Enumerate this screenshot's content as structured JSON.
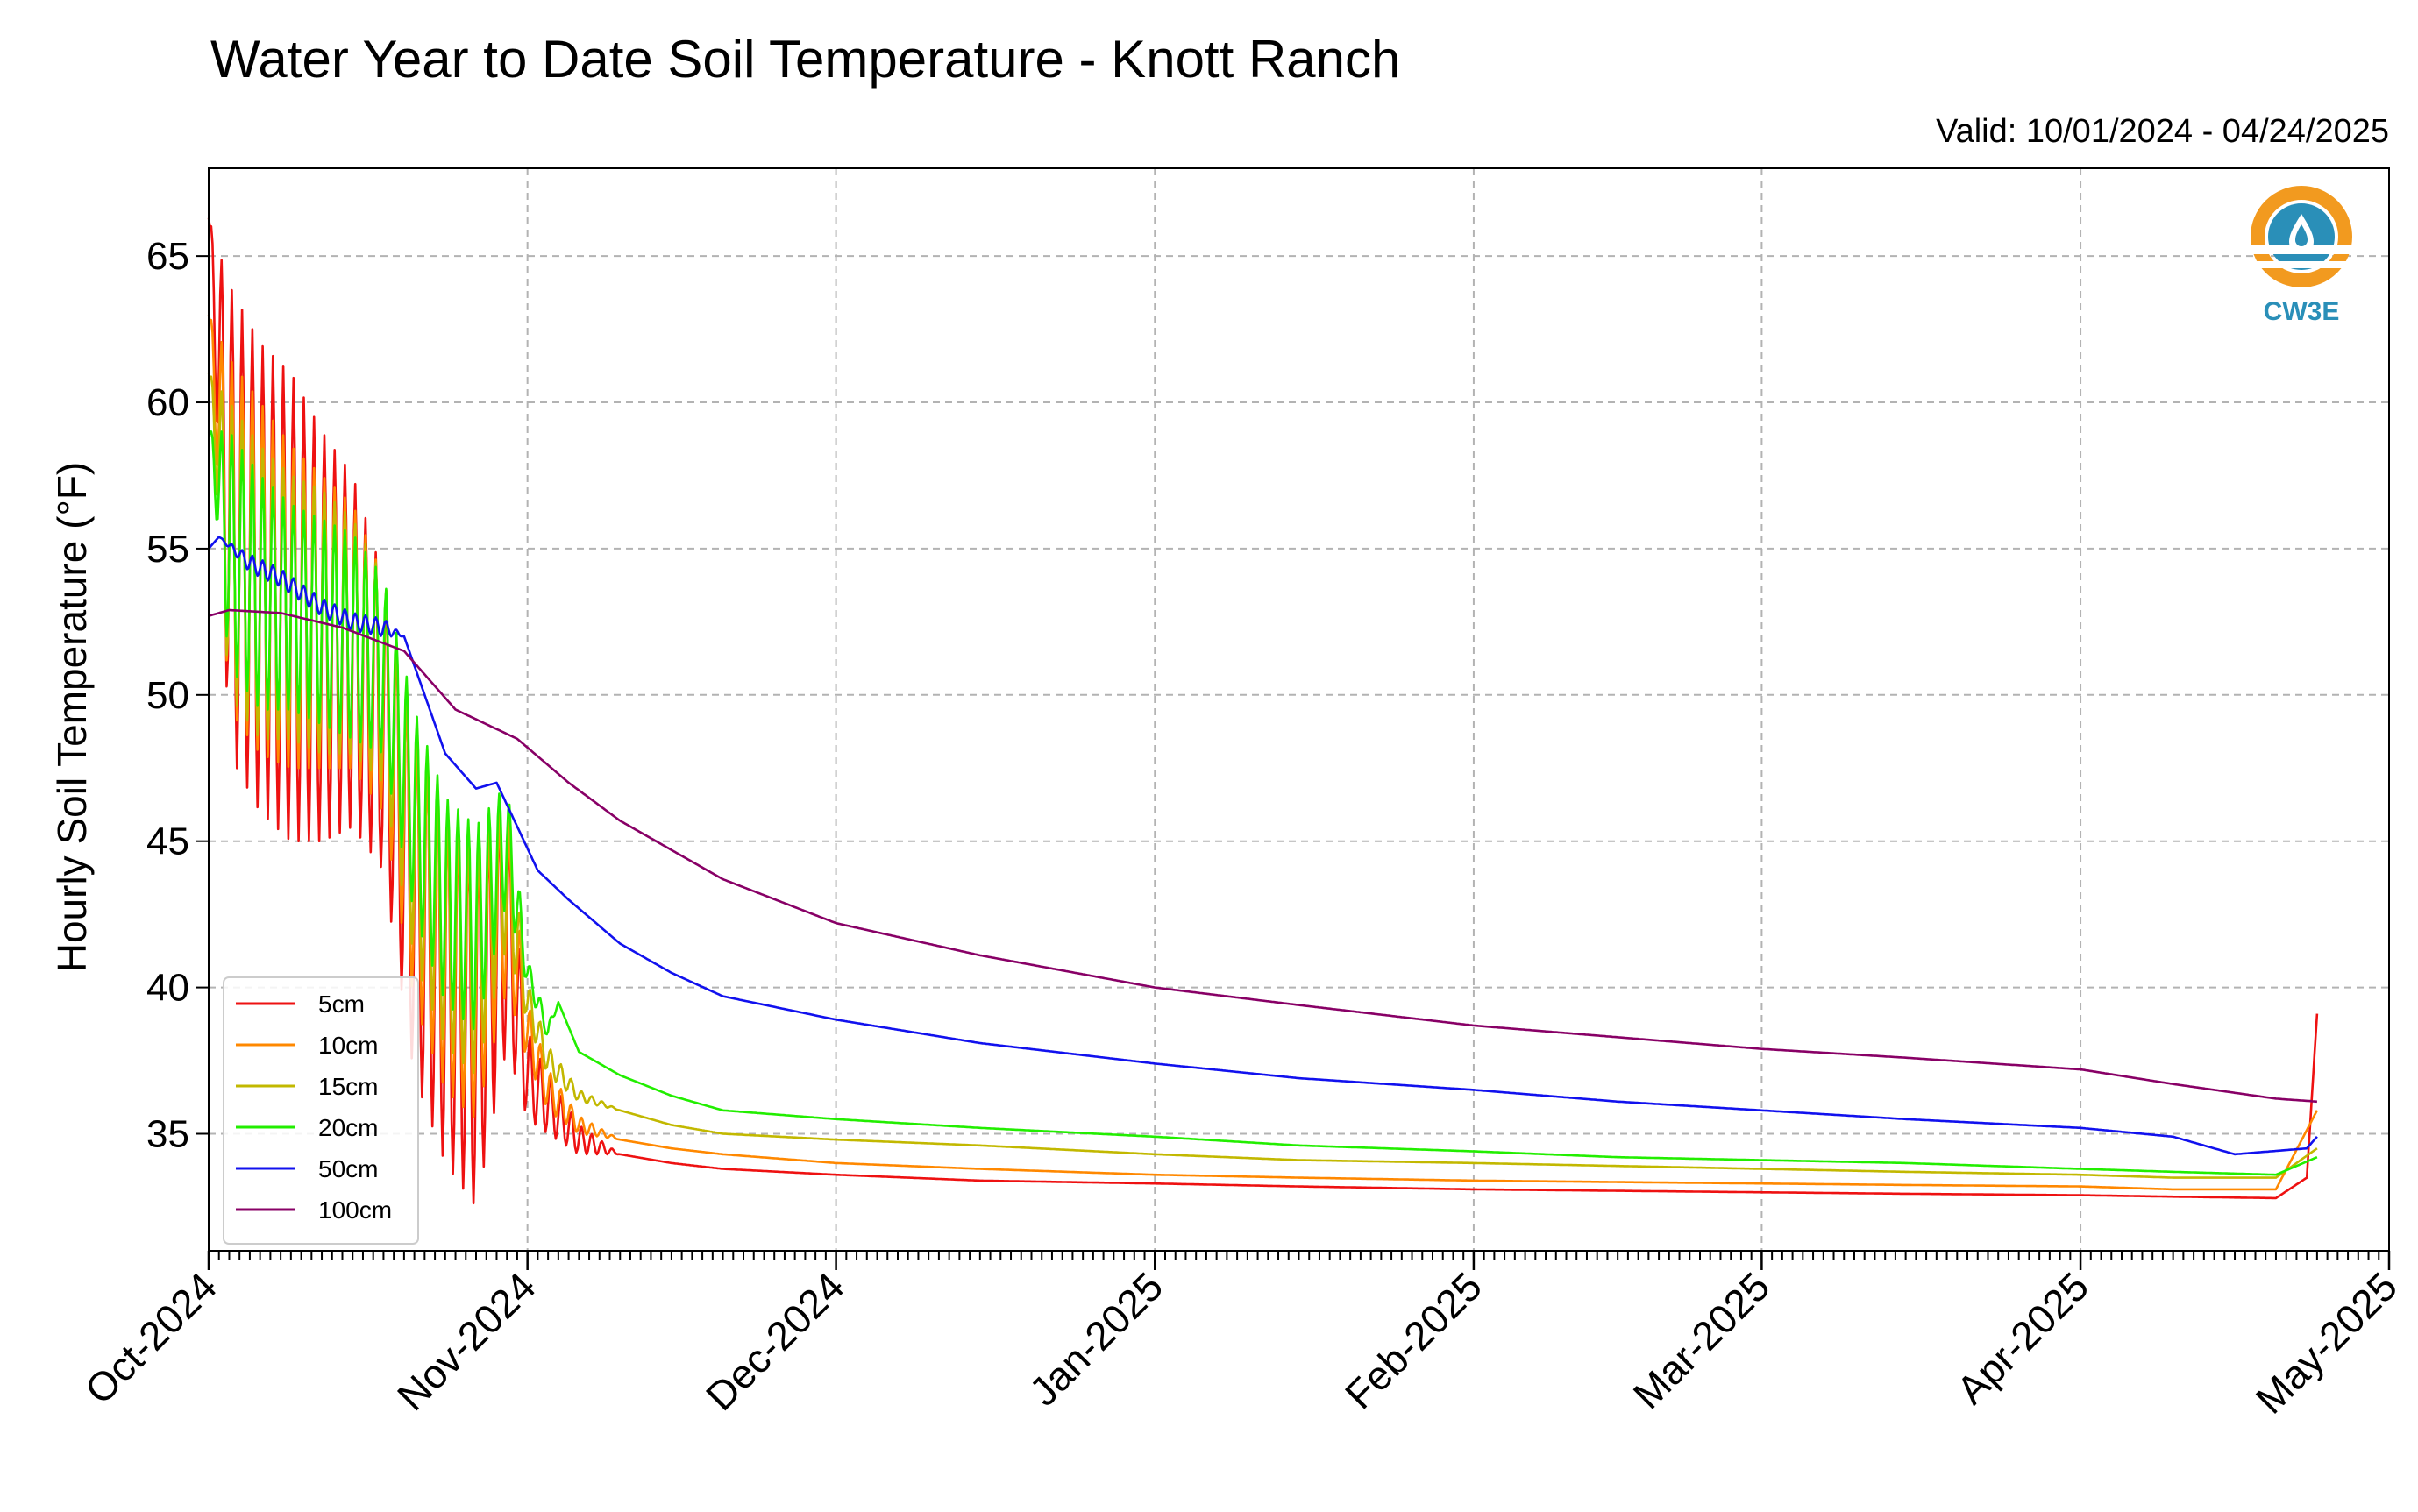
{
  "chart_data": {
    "type": "line",
    "title": "Water Year to Date Soil Temperature - Knott Ranch",
    "subtitle": "Valid: 10/01/2024 - 04/24/2025",
    "ylabel": "Hourly Soil Temperature (°F)",
    "xlabel": "",
    "xlim": [
      "2024-10-01",
      "2025-05-01"
    ],
    "ylim": [
      31,
      68
    ],
    "x_ticks": [
      {
        "date": "2024-10-01",
        "label": "Oct-2024"
      },
      {
        "date": "2024-11-01",
        "label": "Nov-2024"
      },
      {
        "date": "2024-12-01",
        "label": "Dec-2024"
      },
      {
        "date": "2025-01-01",
        "label": "Jan-2025"
      },
      {
        "date": "2025-02-01",
        "label": "Feb-2025"
      },
      {
        "date": "2025-03-01",
        "label": "Mar-2025"
      },
      {
        "date": "2025-04-01",
        "label": "Apr-2025"
      },
      {
        "date": "2025-05-01",
        "label": "May-2025"
      }
    ],
    "y_ticks": [
      35,
      40,
      45,
      50,
      55,
      60,
      65
    ],
    "grid": true,
    "legend_position": "lower-left",
    "series": [
      {
        "name": "5cm",
        "color": "#ee1111",
        "x": [
          "2024-10-01",
          "2024-10-03",
          "2024-10-06",
          "2024-10-09",
          "2024-10-12",
          "2024-10-15",
          "2024-10-18",
          "2024-10-21",
          "2024-10-24",
          "2024-10-27",
          "2024-10-30",
          "2024-11-01",
          "2024-11-03",
          "2024-11-06",
          "2024-11-10",
          "2024-11-15",
          "2024-11-20",
          "2024-12-01",
          "2024-12-15",
          "2025-01-01",
          "2025-01-15",
          "2025-02-01",
          "2025-02-15",
          "2025-03-01",
          "2025-03-15",
          "2025-04-01",
          "2025-04-10",
          "2025-04-20",
          "2025-04-23",
          "2025-04-24"
        ],
        "y": [
          66.3,
          56,
          54,
          53,
          52,
          51.5,
          49,
          43,
          40,
          38.5,
          42,
          37,
          36,
          34.8,
          34.3,
          34,
          33.8,
          33.6,
          33.4,
          33.3,
          33.2,
          33.1,
          33.05,
          33,
          32.95,
          32.9,
          32.85,
          32.8,
          33.5,
          39.1
        ],
        "amp": [
          0,
          8,
          8,
          8,
          7,
          6,
          5,
          6,
          6,
          6,
          4,
          1.5,
          1,
          0.5,
          0,
          0,
          0,
          0,
          0,
          0,
          0,
          0,
          0,
          0,
          0,
          0,
          0,
          0,
          0,
          0
        ]
      },
      {
        "name": "10cm",
        "color": "#ff8800",
        "x": [
          "2024-10-01",
          "2024-10-03",
          "2024-10-06",
          "2024-10-09",
          "2024-10-12",
          "2024-10-15",
          "2024-10-18",
          "2024-10-21",
          "2024-10-24",
          "2024-10-27",
          "2024-10-30",
          "2024-11-01",
          "2024-11-03",
          "2024-11-06",
          "2024-11-10",
          "2024-11-15",
          "2024-11-20",
          "2024-12-01",
          "2024-12-15",
          "2025-01-01",
          "2025-01-15",
          "2025-02-01",
          "2025-02-15",
          "2025-03-01",
          "2025-03-15",
          "2025-04-01",
          "2025-04-10",
          "2025-04-20",
          "2025-04-24"
        ],
        "y": [
          63,
          55.5,
          54,
          53,
          52.5,
          52,
          50,
          44,
          41,
          40,
          43,
          38.5,
          36.5,
          35.3,
          34.8,
          34.5,
          34.3,
          34,
          33.8,
          33.6,
          33.5,
          33.4,
          33.35,
          33.3,
          33.25,
          33.2,
          33.1,
          33.1,
          35.8
        ],
        "amp": [
          0,
          6,
          6,
          5.5,
          5,
          4.5,
          4,
          4.5,
          4.5,
          4.5,
          3,
          1,
          0.7,
          0.3,
          0,
          0,
          0,
          0,
          0,
          0,
          0,
          0,
          0,
          0,
          0,
          0,
          0,
          0,
          0
        ]
      },
      {
        "name": "15cm",
        "color": "#c2b800",
        "x": [
          "2024-10-01",
          "2024-10-03",
          "2024-10-06",
          "2024-10-09",
          "2024-10-12",
          "2024-10-15",
          "2024-10-18",
          "2024-10-21",
          "2024-10-24",
          "2024-10-27",
          "2024-10-30",
          "2024-11-01",
          "2024-11-03",
          "2024-11-06",
          "2024-11-10",
          "2024-11-15",
          "2024-11-20",
          "2024-12-01",
          "2024-12-15",
          "2025-01-01",
          "2025-01-15",
          "2025-02-01",
          "2025-02-15",
          "2025-03-01",
          "2025-03-15",
          "2025-04-01",
          "2025-04-10",
          "2025-04-20",
          "2025-04-24"
        ],
        "y": [
          61,
          55,
          53.5,
          53,
          52.5,
          52,
          50.5,
          45,
          42,
          41,
          44,
          39.5,
          37.5,
          36.3,
          35.8,
          35.3,
          35,
          34.8,
          34.6,
          34.3,
          34.1,
          34,
          33.9,
          33.8,
          33.7,
          33.6,
          33.5,
          33.5,
          34.5
        ],
        "amp": [
          0,
          5,
          5,
          4.5,
          4.5,
          4,
          3.5,
          4,
          4,
          4,
          2.5,
          0.7,
          0.5,
          0.2,
          0,
          0,
          0,
          0,
          0,
          0,
          0,
          0,
          0,
          0,
          0,
          0,
          0,
          0,
          0
        ]
      },
      {
        "name": "20cm",
        "color": "#22ee00",
        "x": [
          "2024-10-01",
          "2024-10-03",
          "2024-10-06",
          "2024-10-09",
          "2024-10-12",
          "2024-10-15",
          "2024-10-18",
          "2024-10-21",
          "2024-10-24",
          "2024-10-27",
          "2024-10-30",
          "2024-11-01",
          "2024-11-03",
          "2024-11-04",
          "2024-11-06",
          "2024-11-10",
          "2024-11-15",
          "2024-11-20",
          "2024-12-01",
          "2024-12-15",
          "2025-01-01",
          "2025-01-15",
          "2025-02-01",
          "2025-02-15",
          "2025-03-01",
          "2025-03-15",
          "2025-04-01",
          "2025-04-10",
          "2025-04-20",
          "2025-04-24"
        ],
        "y": [
          59,
          55,
          53.5,
          53,
          52.5,
          52,
          51,
          46,
          43,
          42,
          45,
          40.5,
          38.5,
          39.5,
          37.8,
          37,
          36.3,
          35.8,
          35.5,
          35.2,
          34.9,
          34.6,
          34.4,
          34.2,
          34.1,
          34,
          33.8,
          33.7,
          33.6,
          34.2
        ],
        "amp": [
          0,
          4,
          4,
          3.5,
          3.5,
          3.5,
          3,
          3.5,
          3.5,
          3.5,
          2,
          0.5,
          0.3,
          0,
          0,
          0,
          0,
          0,
          0,
          0,
          0,
          0,
          0,
          0,
          0,
          0,
          0,
          0,
          0,
          0
        ]
      },
      {
        "name": "50cm",
        "color": "#1111ee",
        "x": [
          "2024-10-01",
          "2024-10-02",
          "2024-10-05",
          "2024-10-08",
          "2024-10-12",
          "2024-10-15",
          "2024-10-18",
          "2024-10-20",
          "2024-10-24",
          "2024-10-27",
          "2024-10-29",
          "2024-10-31",
          "2024-11-02",
          "2024-11-05",
          "2024-11-10",
          "2024-11-15",
          "2024-11-20",
          "2024-12-01",
          "2024-12-15",
          "2025-01-01",
          "2025-01-15",
          "2025-02-01",
          "2025-02-15",
          "2025-03-01",
          "2025-03-15",
          "2025-04-01",
          "2025-04-10",
          "2025-04-16",
          "2025-04-23",
          "2025-04-24"
        ],
        "y": [
          55,
          55.4,
          54.5,
          54,
          53,
          52.5,
          52.3,
          52,
          48,
          46.8,
          47,
          45.5,
          44,
          43,
          41.5,
          40.5,
          39.7,
          38.9,
          38.1,
          37.4,
          36.9,
          36.5,
          36.1,
          35.8,
          35.5,
          35.2,
          34.9,
          34.3,
          34.5,
          34.9
        ],
        "amp": [
          0,
          0,
          0.3,
          0.3,
          0.3,
          0.3,
          0.3,
          0,
          0,
          0,
          0,
          0,
          0,
          0,
          0,
          0,
          0,
          0,
          0,
          0,
          0,
          0,
          0,
          0,
          0,
          0,
          0,
          0,
          0,
          0
        ]
      },
      {
        "name": "100cm",
        "color": "#880066",
        "x": [
          "2024-10-01",
          "2024-10-03",
          "2024-10-08",
          "2024-10-14",
          "2024-10-20",
          "2024-10-25",
          "2024-10-31",
          "2024-11-05",
          "2024-11-10",
          "2024-11-20",
          "2024-12-01",
          "2024-12-15",
          "2025-01-01",
          "2025-01-15",
          "2025-02-01",
          "2025-02-15",
          "2025-03-01",
          "2025-03-15",
          "2025-04-01",
          "2025-04-10",
          "2025-04-20",
          "2025-04-24"
        ],
        "y": [
          52.7,
          52.9,
          52.8,
          52.3,
          51.5,
          49.5,
          48.5,
          47,
          45.7,
          43.7,
          42.2,
          41.1,
          40,
          39.4,
          38.7,
          38.3,
          37.9,
          37.6,
          37.2,
          36.7,
          36.2,
          36.1
        ],
        "amp": [
          0,
          0,
          0,
          0,
          0,
          0,
          0,
          0,
          0,
          0,
          0,
          0,
          0,
          0,
          0,
          0,
          0,
          0,
          0,
          0,
          0,
          0
        ]
      }
    ]
  },
  "logo": {
    "text": "CW3E",
    "ring_color": "#f29a1f",
    "accent_color": "#2a8fb8"
  }
}
